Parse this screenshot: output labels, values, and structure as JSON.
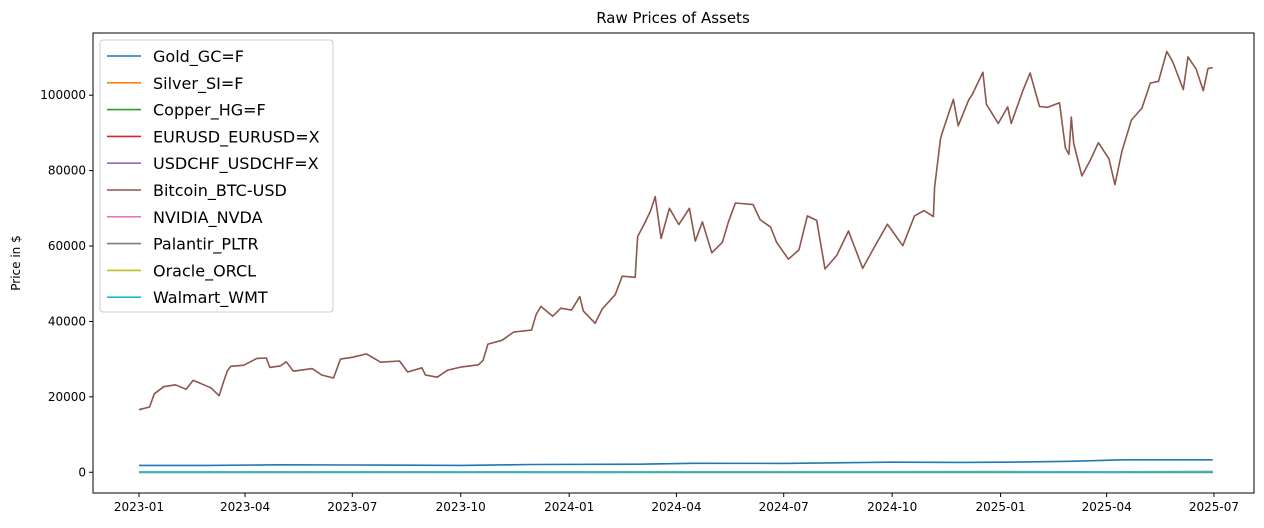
{
  "chart_data": {
    "type": "line",
    "title": "Raw Prices of Assets",
    "xlabel": "",
    "ylabel": "Price in $",
    "x_ticks": [
      "2023-01",
      "2023-04",
      "2023-07",
      "2023-10",
      "2024-01",
      "2024-04",
      "2024-07",
      "2024-10",
      "2025-01",
      "2025-04",
      "2025-07"
    ],
    "y_ticks": [
      0,
      20000,
      40000,
      60000,
      80000,
      100000
    ],
    "xlim": [
      "2022-11-23",
      "2025-08-04"
    ],
    "ylim": [
      -5500,
      116500
    ],
    "grid": false,
    "legend_position": "upper-left",
    "series": [
      {
        "name": "Gold_GC=F",
        "color": "#1f77b4",
        "points": [
          [
            "2023-01-01",
            1830
          ],
          [
            "2023-03-01",
            1810
          ],
          [
            "2023-05-01",
            1990
          ],
          [
            "2023-07-01",
            1920
          ],
          [
            "2023-10-01",
            1830
          ],
          [
            "2023-12-01",
            2050
          ],
          [
            "2024-03-01",
            2150
          ],
          [
            "2024-04-15",
            2380
          ],
          [
            "2024-07-01",
            2350
          ],
          [
            "2024-10-01",
            2660
          ],
          [
            "2024-12-01",
            2620
          ],
          [
            "2025-01-15",
            2700
          ],
          [
            "2025-03-01",
            2900
          ],
          [
            "2025-04-15",
            3300
          ],
          [
            "2025-06-30",
            3300
          ]
        ]
      },
      {
        "name": "Silver_SI=F",
        "color": "#ff7f0e",
        "points": [
          [
            "2023-01-01",
            24
          ],
          [
            "2023-06-01",
            23
          ],
          [
            "2024-01-01",
            24
          ],
          [
            "2024-06-01",
            30
          ],
          [
            "2025-01-01",
            30
          ],
          [
            "2025-06-30",
            36
          ]
        ]
      },
      {
        "name": "Copper_HG=F",
        "color": "#2ca02c",
        "points": [
          [
            "2023-01-01",
            3.8
          ],
          [
            "2023-06-01",
            3.8
          ],
          [
            "2024-01-01",
            3.9
          ],
          [
            "2024-06-01",
            4.6
          ],
          [
            "2025-01-01",
            4.2
          ],
          [
            "2025-06-30",
            5.0
          ]
        ]
      },
      {
        "name": "EURUSD_EURUSD=X",
        "color": "#d62728",
        "points": [
          [
            "2023-01-01",
            1.07
          ],
          [
            "2023-07-01",
            1.09
          ],
          [
            "2024-01-01",
            1.1
          ],
          [
            "2024-07-01",
            1.08
          ],
          [
            "2025-01-01",
            1.03
          ],
          [
            "2025-06-30",
            1.17
          ]
        ]
      },
      {
        "name": "USDCHF_USDCHF=X",
        "color": "#9467bd",
        "points": [
          [
            "2023-01-01",
            0.92
          ],
          [
            "2023-07-01",
            0.87
          ],
          [
            "2024-01-01",
            0.85
          ],
          [
            "2024-07-01",
            0.89
          ],
          [
            "2025-01-01",
            0.91
          ],
          [
            "2025-06-30",
            0.8
          ]
        ]
      },
      {
        "name": "Bitcoin_BTC-USD",
        "color": "#8c564b",
        "points": [
          [
            "2023-01-01",
            16600
          ],
          [
            "2023-01-10",
            17300
          ],
          [
            "2023-01-14",
            20800
          ],
          [
            "2023-01-22",
            22700
          ],
          [
            "2023-02-01",
            23200
          ],
          [
            "2023-02-10",
            22000
          ],
          [
            "2023-02-16",
            24400
          ],
          [
            "2023-02-25",
            23200
          ],
          [
            "2023-03-03",
            22400
          ],
          [
            "2023-03-10",
            20300
          ],
          [
            "2023-03-14",
            24200
          ],
          [
            "2023-03-17",
            26900
          ],
          [
            "2023-03-20",
            28100
          ],
          [
            "2023-03-31",
            28400
          ],
          [
            "2023-04-11",
            30200
          ],
          [
            "2023-04-19",
            30300
          ],
          [
            "2023-04-22",
            27800
          ],
          [
            "2023-05-01",
            28200
          ],
          [
            "2023-05-06",
            29300
          ],
          [
            "2023-05-12",
            26800
          ],
          [
            "2023-05-28",
            27500
          ],
          [
            "2023-06-05",
            25800
          ],
          [
            "2023-06-15",
            25000
          ],
          [
            "2023-06-21",
            30000
          ],
          [
            "2023-07-01",
            30500
          ],
          [
            "2023-07-13",
            31400
          ],
          [
            "2023-07-25",
            29200
          ],
          [
            "2023-08-10",
            29500
          ],
          [
            "2023-08-17",
            26600
          ],
          [
            "2023-08-29",
            27700
          ],
          [
            "2023-09-01",
            25800
          ],
          [
            "2023-09-11",
            25200
          ],
          [
            "2023-09-20",
            27100
          ],
          [
            "2023-10-01",
            27900
          ],
          [
            "2023-10-16",
            28500
          ],
          [
            "2023-10-20",
            29700
          ],
          [
            "2023-10-24",
            34000
          ],
          [
            "2023-11-05",
            35000
          ],
          [
            "2023-11-15",
            37200
          ],
          [
            "2023-11-30",
            37700
          ],
          [
            "2023-12-04",
            41900
          ],
          [
            "2023-12-08",
            44000
          ],
          [
            "2023-12-18",
            41400
          ],
          [
            "2023-12-25",
            43500
          ],
          [
            "2024-01-03",
            43000
          ],
          [
            "2024-01-10",
            46600
          ],
          [
            "2024-01-13",
            42800
          ],
          [
            "2024-01-23",
            39500
          ],
          [
            "2024-01-29",
            43300
          ],
          [
            "2024-02-09",
            47100
          ],
          [
            "2024-02-15",
            52000
          ],
          [
            "2024-02-26",
            51700
          ],
          [
            "2024-02-28",
            62500
          ],
          [
            "2024-03-05",
            66000
          ],
          [
            "2024-03-10",
            69300
          ],
          [
            "2024-03-14",
            73100
          ],
          [
            "2024-03-19",
            62000
          ],
          [
            "2024-03-26",
            70000
          ],
          [
            "2024-04-03",
            65700
          ],
          [
            "2024-04-12",
            70000
          ],
          [
            "2024-04-17",
            61300
          ],
          [
            "2024-04-23",
            66400
          ],
          [
            "2024-05-01",
            58200
          ],
          [
            "2024-05-10",
            61000
          ],
          [
            "2024-05-15",
            66300
          ],
          [
            "2024-05-21",
            71400
          ],
          [
            "2024-06-05",
            71000
          ],
          [
            "2024-06-11",
            67000
          ],
          [
            "2024-06-20",
            65000
          ],
          [
            "2024-06-25",
            61000
          ],
          [
            "2024-07-05",
            56500
          ],
          [
            "2024-07-14",
            59000
          ],
          [
            "2024-07-21",
            68000
          ],
          [
            "2024-07-29",
            66800
          ],
          [
            "2024-08-05",
            53900
          ],
          [
            "2024-08-15",
            57500
          ],
          [
            "2024-08-25",
            64000
          ],
          [
            "2024-09-06",
            54100
          ],
          [
            "2024-09-15",
            59200
          ],
          [
            "2024-09-27",
            65800
          ],
          [
            "2024-10-10",
            60100
          ],
          [
            "2024-10-20",
            68000
          ],
          [
            "2024-10-28",
            69400
          ],
          [
            "2024-11-05",
            67800
          ],
          [
            "2024-11-06",
            75600
          ],
          [
            "2024-11-11",
            88500
          ],
          [
            "2024-11-13",
            90500
          ],
          [
            "2024-11-22",
            98900
          ],
          [
            "2024-11-26",
            91900
          ],
          [
            "2024-12-05",
            98800
          ],
          [
            "2024-12-08",
            100200
          ],
          [
            "2024-12-17",
            106100
          ],
          [
            "2024-12-20",
            97600
          ],
          [
            "2024-12-30",
            92500
          ],
          [
            "2025-01-07",
            96900
          ],
          [
            "2025-01-10",
            92500
          ],
          [
            "2025-01-20",
            101300
          ],
          [
            "2025-01-26",
            105900
          ],
          [
            "2025-02-03",
            97000
          ],
          [
            "2025-02-10",
            96800
          ],
          [
            "2025-02-20",
            98000
          ],
          [
            "2025-02-25",
            86000
          ],
          [
            "2025-02-28",
            84300
          ],
          [
            "2025-03-02",
            94200
          ],
          [
            "2025-03-04",
            87200
          ],
          [
            "2025-03-11",
            78600
          ],
          [
            "2025-03-18",
            82700
          ],
          [
            "2025-03-25",
            87400
          ],
          [
            "2025-04-03",
            83100
          ],
          [
            "2025-04-08",
            76300
          ],
          [
            "2025-04-14",
            85200
          ],
          [
            "2025-04-22",
            93400
          ],
          [
            "2025-05-01",
            96600
          ],
          [
            "2025-05-08",
            103200
          ],
          [
            "2025-05-15",
            103700
          ],
          [
            "2025-05-22",
            111600
          ],
          [
            "2025-05-27",
            108900
          ],
          [
            "2025-06-05",
            101500
          ],
          [
            "2025-06-09",
            110200
          ],
          [
            "2025-06-16",
            106900
          ],
          [
            "2025-06-22",
            101200
          ],
          [
            "2025-06-26",
            107100
          ],
          [
            "2025-06-30",
            107300
          ]
        ]
      },
      {
        "name": "NVIDIA_NVDA",
        "color": "#e377c2",
        "points": [
          [
            "2023-01-01",
            15
          ],
          [
            "2023-07-01",
            43
          ],
          [
            "2024-01-01",
            48
          ],
          [
            "2024-06-01",
            130
          ],
          [
            "2025-01-01",
            138
          ],
          [
            "2025-04-07",
            97
          ],
          [
            "2025-06-30",
            158
          ]
        ]
      },
      {
        "name": "Palantir_PLTR",
        "color": "#7f7f7f",
        "points": [
          [
            "2023-01-01",
            6
          ],
          [
            "2023-07-01",
            15
          ],
          [
            "2024-01-01",
            17
          ],
          [
            "2024-07-01",
            27
          ],
          [
            "2025-01-01",
            76
          ],
          [
            "2025-04-07",
            77
          ],
          [
            "2025-06-30",
            136
          ]
        ]
      },
      {
        "name": "Oracle_ORCL",
        "color": "#bcbd22",
        "points": [
          [
            "2023-01-01",
            82
          ],
          [
            "2023-07-01",
            118
          ],
          [
            "2024-01-01",
            105
          ],
          [
            "2024-07-01",
            141
          ],
          [
            "2025-01-01",
            167
          ],
          [
            "2025-04-07",
            124
          ],
          [
            "2025-06-30",
            218
          ]
        ]
      },
      {
        "name": "Walmart_WMT",
        "color": "#17becf",
        "points": [
          [
            "2023-01-01",
            47
          ],
          [
            "2023-07-01",
            52
          ],
          [
            "2024-01-01",
            53
          ],
          [
            "2024-07-01",
            68
          ],
          [
            "2025-01-01",
            90
          ],
          [
            "2025-04-07",
            84
          ],
          [
            "2025-06-30",
            98
          ]
        ]
      }
    ]
  }
}
